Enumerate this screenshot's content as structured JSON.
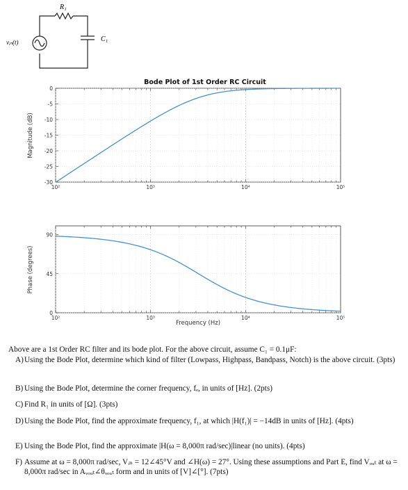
{
  "circuit": {
    "resistor_label": "R₁",
    "capacitor_label": "C₁",
    "source_label": "vᵢₙ(t)"
  },
  "chart_data": [
    {
      "type": "line",
      "title": "Bode Plot of 1st Order RC Circuit",
      "xlabel": "",
      "ylabel": "Magnitude (dB)",
      "xscale": "log",
      "xlim": [
        100,
        100000
      ],
      "ylim": [
        -30,
        0
      ],
      "xticks": [
        "10²",
        "10³",
        "10⁴",
        "10⁵"
      ],
      "yticks": [
        "0",
        "-5",
        "-10",
        "-15",
        "-20",
        "-25",
        "-30"
      ],
      "grid": true,
      "series": [
        {
          "x": [
            100,
            200,
            500,
            1000,
            2000,
            3183,
            5000,
            10000,
            20000,
            50000,
            100000
          ],
          "y": [
            -30.0,
            -24.0,
            -16.2,
            -10.5,
            -5.3,
            -3.0,
            -1.5,
            -0.4,
            -0.1,
            -0.02,
            0.0
          ],
          "color": "#4a90c8"
        }
      ]
    },
    {
      "type": "line",
      "title": "",
      "xlabel": "Frequency (Hz)",
      "ylabel": "Phase (degrees)",
      "xscale": "log",
      "xlim": [
        100,
        100000
      ],
      "ylim": [
        0,
        100
      ],
      "xticks": [
        "10²",
        "10³",
        "10⁴",
        "10⁵"
      ],
      "yticks": [
        "0",
        "45",
        "90"
      ],
      "grid": true,
      "series": [
        {
          "x": [
            100,
            200,
            500,
            1000,
            2000,
            3183,
            5000,
            10000,
            20000,
            50000,
            100000
          ],
          "y": [
            88.2,
            86.4,
            81.0,
            72.6,
            57.9,
            45.0,
            32.5,
            17.7,
            9.0,
            3.6,
            1.8
          ],
          "color": "#4a90c8"
        }
      ]
    }
  ],
  "text": {
    "intro": "Above are a 1st Order RC filter and its bode plot. For the above circuit, assume C₁ = 0.1μF:",
    "questions": [
      {
        "label": "A)",
        "text": "Using the Bode Plot, determine which kind of filter (Lowpass, Highpass, Bandpass, Notch) is the above circuit. (3pts)"
      },
      {
        "label": "B)",
        "text": "Using the Bode Plot, determine the corner frequency, fₑ, in units of [Hz]. (2pts)"
      },
      {
        "label": "C)",
        "text": "Find R₁ in units of [Ω]. (3pts)"
      },
      {
        "label": "D)",
        "text": "Using the Bode Plot, find the approximate frequency, f₁, at which |H(f₁)| = −14dB in units of [Hz]. (4pts)"
      },
      {
        "label": "E)",
        "text": "Using the Bode Plot, find the approximate |H(ω = 8,000π rad/sec)|linear (no units). (4pts)"
      },
      {
        "label": "F)",
        "text": "Assume at ω = 8,000π rad/sec, Vᵢₙ = 12∠45°V and ∠H(ω) = 27°. Using these assumptions and Part E, find Vₒᵤₜ at ω = 8,000π rad/sec in Aᵥₒᵤₜ∠θᵥₒᵤₜ form and in units of [V]∠[°]. (7pts)"
      }
    ]
  }
}
